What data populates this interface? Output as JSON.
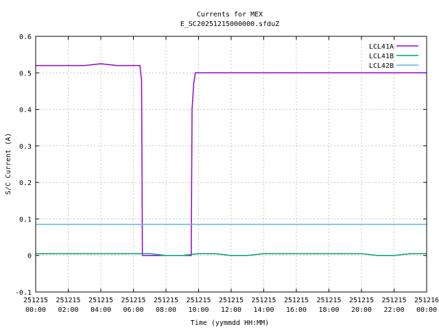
{
  "chart_data": {
    "type": "line",
    "title": "Currents for MEX",
    "subtitle": "E_SC20251215000000.sfduZ",
    "xlabel": "Time (yymmdd HH:MM)",
    "ylabel": "S/C Current (A)",
    "x_unit": "hours since 251215 00:00",
    "xlim": [
      0,
      24
    ],
    "ylim": [
      -0.1,
      0.6
    ],
    "y_ticks": [
      -0.1,
      0,
      0.1,
      0.2,
      0.3,
      0.4,
      0.5,
      0.6
    ],
    "y_tick_labels": [
      "-0.1",
      "0",
      "0.1",
      "0.2",
      "0.3",
      "0.4",
      "0.5",
      "0.6"
    ],
    "x_ticks": [
      0,
      2,
      4,
      6,
      8,
      10,
      12,
      14,
      16,
      18,
      20,
      22,
      24
    ],
    "x_tick_labels": [
      [
        "251215",
        "00:00"
      ],
      [
        "251215",
        "02:00"
      ],
      [
        "251215",
        "04:00"
      ],
      [
        "251215",
        "06:00"
      ],
      [
        "251215",
        "08:00"
      ],
      [
        "251215",
        "10:00"
      ],
      [
        "251215",
        "12:00"
      ],
      [
        "251215",
        "14:00"
      ],
      [
        "251215",
        "16:00"
      ],
      [
        "251215",
        "18:00"
      ],
      [
        "251215",
        "20:00"
      ],
      [
        "251215",
        "22:00"
      ],
      [
        "251216",
        "00:00"
      ]
    ],
    "grid": true,
    "legend_position": "top-right",
    "series": [
      {
        "name": "LCL41A",
        "color": "#9400d3",
        "x": [
          0,
          1,
          2,
          3,
          4,
          5,
          6,
          6.4,
          6.5,
          6.55,
          6.6,
          9.55,
          9.6,
          9.7,
          9.8,
          10,
          11,
          12,
          13,
          14,
          15,
          16,
          17,
          18,
          19,
          20,
          21,
          22,
          23,
          24
        ],
        "y": [
          0.52,
          0.52,
          0.52,
          0.52,
          0.525,
          0.52,
          0.52,
          0.52,
          0.48,
          0.0,
          0.0,
          0.0,
          0.4,
          0.47,
          0.5,
          0.5,
          0.5,
          0.5,
          0.5,
          0.5,
          0.5,
          0.5,
          0.5,
          0.5,
          0.5,
          0.5,
          0.5,
          0.5,
          0.5,
          0.5
        ]
      },
      {
        "name": "LCL41B",
        "color": "#009e73",
        "x": [
          0,
          1,
          2,
          3,
          4,
          5,
          6,
          6.5,
          7,
          8,
          9,
          10,
          11,
          12,
          13,
          14,
          15,
          16,
          17,
          18,
          19,
          20,
          21,
          22,
          23,
          24
        ],
        "y": [
          0.005,
          0.005,
          0.005,
          0.005,
          0.005,
          0.005,
          0.005,
          0.005,
          0.005,
          0.0,
          0.0,
          0.005,
          0.005,
          0.0,
          0.0,
          0.005,
          0.005,
          0.005,
          0.005,
          0.005,
          0.005,
          0.005,
          0.0,
          0.0,
          0.005,
          0.005
        ]
      },
      {
        "name": "LCL42B",
        "color": "#56b4e9",
        "x": [
          0,
          24
        ],
        "y": [
          0.085,
          0.085
        ]
      }
    ]
  }
}
